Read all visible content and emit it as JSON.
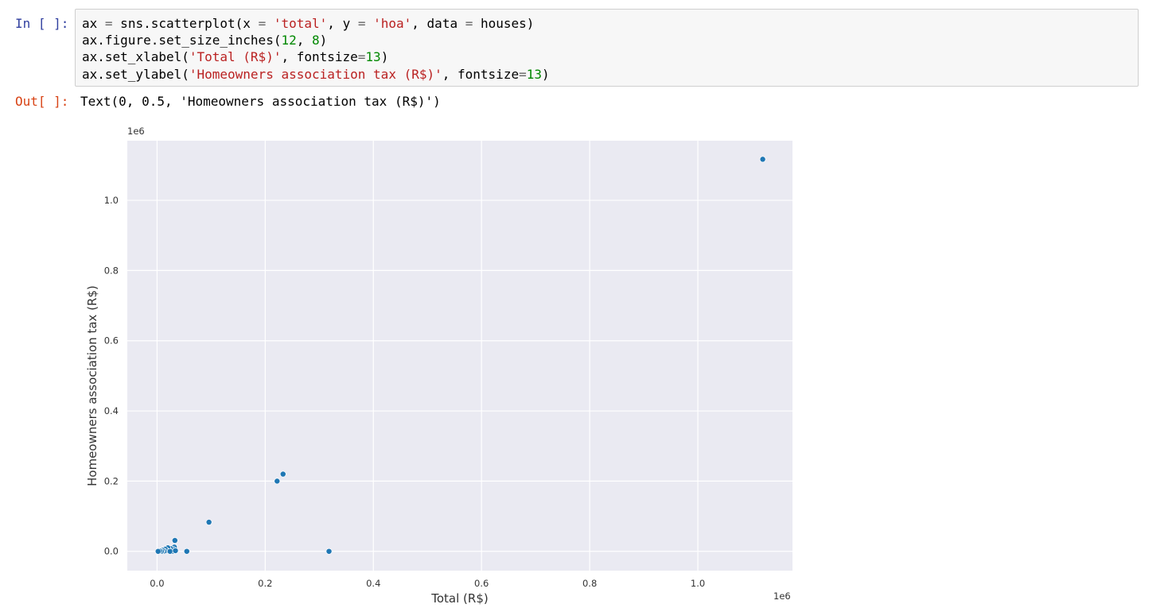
{
  "input_cell": {
    "prompt": "In [ ]:",
    "code_lines": [
      "ax = sns.scatterplot(x = 'total', y = 'hoa', data = houses)",
      "ax.figure.set_size_inches(12, 8)",
      "ax.set_xlabel('Total (R$)', fontsize=13)",
      "ax.set_ylabel('Homeowners association tax (R$)', fontsize=13)"
    ]
  },
  "output_cell": {
    "prompt": "Out[ ]:",
    "text": "Text(0, 0.5, 'Homeowners association tax (R$)')"
  },
  "colors": {
    "plot_bg": "#eaeaf2",
    "grid": "#ffffff",
    "marker": "#1f77b4",
    "in_prompt": "#303f9f",
    "out_prompt": "#d84315"
  },
  "chart_data": {
    "type": "scatter",
    "title": "",
    "xlabel": "Total (R$)",
    "ylabel": "Homeowners association tax (R$)",
    "x_offset_label": "1e6",
    "y_offset_label": "1e6",
    "xlim": [
      -0.055,
      1.175
    ],
    "ylim": [
      -0.055,
      1.17
    ],
    "xticks": [
      0.0,
      0.2,
      0.4,
      0.6,
      0.8,
      1.0
    ],
    "yticks": [
      0.0,
      0.2,
      0.4,
      0.6,
      0.8,
      1.0
    ],
    "xtick_labels": [
      "0.0",
      "0.2",
      "0.4",
      "0.6",
      "0.8",
      "1.0"
    ],
    "ytick_labels": [
      "0.0",
      "0.2",
      "0.4",
      "0.6",
      "0.8",
      "1.0"
    ],
    "grid": true,
    "points": [
      {
        "x": 1.12,
        "y": 1.117
      },
      {
        "x": 0.233,
        "y": 0.22
      },
      {
        "x": 0.222,
        "y": 0.2
      },
      {
        "x": 0.096,
        "y": 0.083
      },
      {
        "x": 0.318,
        "y": 0.0
      },
      {
        "x": 0.055,
        "y": 0.0
      },
      {
        "x": 0.033,
        "y": 0.031
      },
      {
        "x": 0.032,
        "y": 0.012
      },
      {
        "x": 0.03,
        "y": 0.006
      },
      {
        "x": 0.028,
        "y": 0.0
      },
      {
        "x": 0.025,
        "y": 0.008
      },
      {
        "x": 0.022,
        "y": 0.004
      },
      {
        "x": 0.02,
        "y": 0.01
      },
      {
        "x": 0.018,
        "y": 0.002
      },
      {
        "x": 0.015,
        "y": 0.006
      },
      {
        "x": 0.013,
        "y": 0.001
      },
      {
        "x": 0.01,
        "y": 0.003
      },
      {
        "x": 0.008,
        "y": 0.0
      },
      {
        "x": 0.005,
        "y": 0.001
      },
      {
        "x": 0.002,
        "y": 0.0
      },
      {
        "x": 0.024,
        "y": 0.0
      },
      {
        "x": 0.034,
        "y": 0.002
      }
    ]
  }
}
